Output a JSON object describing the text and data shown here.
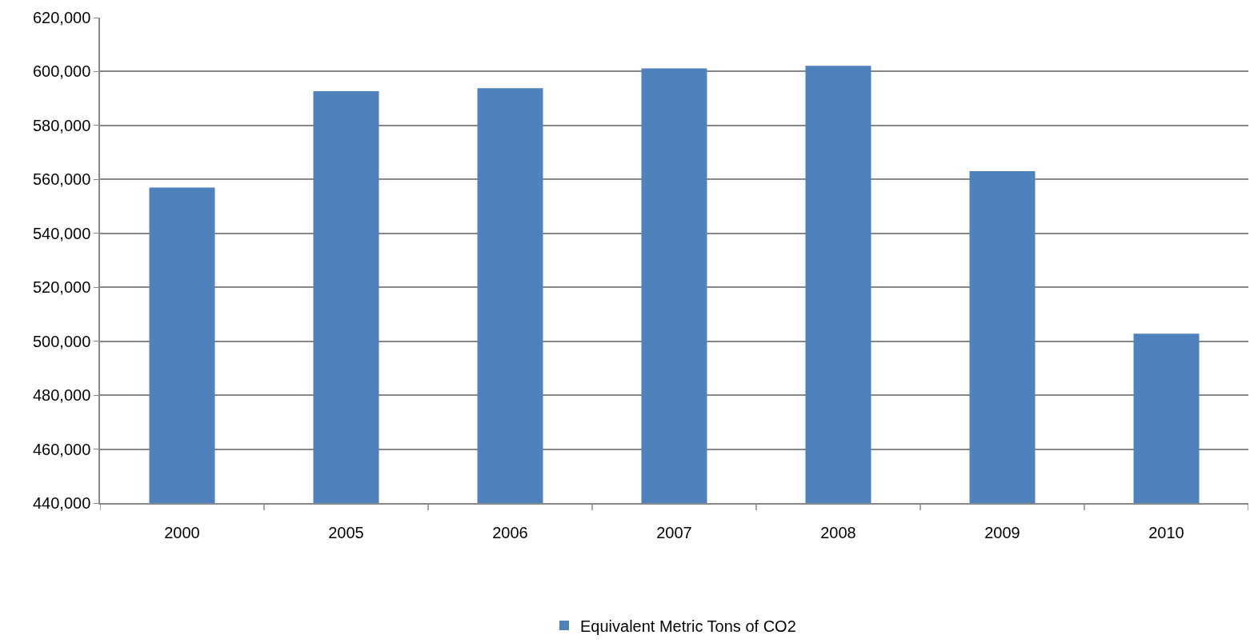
{
  "chart_data": {
    "type": "bar",
    "categories": [
      "2000",
      "2005",
      "2006",
      "2007",
      "2008",
      "2009",
      "2010"
    ],
    "series": [
      {
        "name": "Equivalent Metric Tons of CO2",
        "color": "#4f81bd",
        "values": [
          557000,
          592700,
          593800,
          601200,
          602100,
          563100,
          502800
        ]
      }
    ],
    "ylim": [
      440000,
      620000
    ],
    "yticks": [
      {
        "value": 440000,
        "label": "440,000"
      },
      {
        "value": 460000,
        "label": "460,000"
      },
      {
        "value": 480000,
        "label": "480,000"
      },
      {
        "value": 500000,
        "label": "500,000"
      },
      {
        "value": 520000,
        "label": "520,000"
      },
      {
        "value": 540000,
        "label": "540,000"
      },
      {
        "value": 560000,
        "label": "560,000"
      },
      {
        "value": 580000,
        "label": "580,000"
      },
      {
        "value": 600000,
        "label": "600,000"
      },
      {
        "value": 620000,
        "label": "620,000"
      }
    ],
    "grid": "y",
    "legend": "bottom"
  }
}
